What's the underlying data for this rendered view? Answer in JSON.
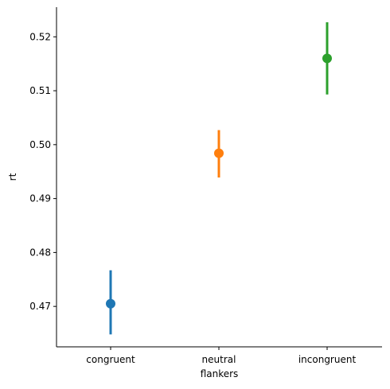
{
  "chart_data": {
    "type": "pointplot",
    "title": "",
    "xlabel": "flankers",
    "ylabel": "rt",
    "categories": [
      "congruent",
      "neutral",
      "incongruent"
    ],
    "points": [
      {
        "category": "congruent",
        "mean": 0.4705,
        "ci_low": 0.4648,
        "ci_high": 0.4767,
        "color": "#1f77b4"
      },
      {
        "category": "neutral",
        "mean": 0.4984,
        "ci_low": 0.4939,
        "ci_high": 0.5027,
        "color": "#ff7f0e"
      },
      {
        "category": "incongruent",
        "mean": 0.516,
        "ci_low": 0.5093,
        "ci_high": 0.5227,
        "color": "#2ca02c"
      }
    ],
    "yticks": [
      "0.47",
      "0.48",
      "0.49",
      "0.50",
      "0.51",
      "0.52"
    ],
    "ylim": [
      0.4625,
      0.5255
    ],
    "grid": false,
    "legend": "none"
  }
}
